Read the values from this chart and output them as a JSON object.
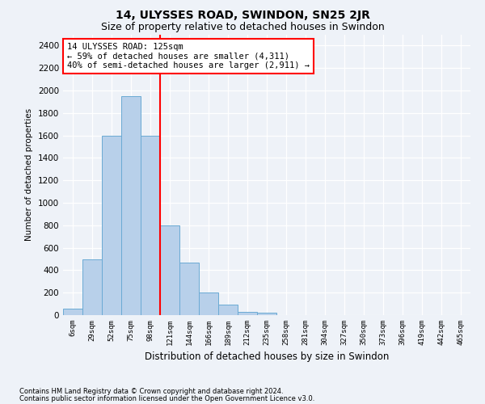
{
  "title": "14, ULYSSES ROAD, SWINDON, SN25 2JR",
  "subtitle": "Size of property relative to detached houses in Swindon",
  "xlabel": "Distribution of detached houses by size in Swindon",
  "ylabel": "Number of detached properties",
  "footer_line1": "Contains HM Land Registry data © Crown copyright and database right 2024.",
  "footer_line2": "Contains public sector information licensed under the Open Government Licence v3.0.",
  "annotation_title": "14 ULYSSES ROAD: 125sqm",
  "annotation_line1": "← 59% of detached houses are smaller (4,311)",
  "annotation_line2": "40% of semi-detached houses are larger (2,911) →",
  "bar_color": "#b8d0ea",
  "bar_edge_color": "#6aaad4",
  "vline_color": "red",
  "vline_x": 4.5,
  "categories": [
    "6sqm",
    "29sqm",
    "52sqm",
    "75sqm",
    "98sqm",
    "121sqm",
    "144sqm",
    "166sqm",
    "189sqm",
    "212sqm",
    "235sqm",
    "258sqm",
    "281sqm",
    "304sqm",
    "327sqm",
    "350sqm",
    "373sqm",
    "396sqm",
    "419sqm",
    "442sqm",
    "465sqm"
  ],
  "values": [
    60,
    500,
    1600,
    1950,
    1600,
    800,
    470,
    200,
    90,
    30,
    20,
    0,
    0,
    0,
    0,
    0,
    0,
    0,
    0,
    0,
    0
  ],
  "ylim": [
    0,
    2500
  ],
  "yticks": [
    0,
    200,
    400,
    600,
    800,
    1000,
    1200,
    1400,
    1600,
    1800,
    2000,
    2200,
    2400
  ],
  "background_color": "#eef2f8",
  "plot_bg_color": "#eef2f8",
  "grid_color": "#ffffff",
  "title_fontsize": 10,
  "subtitle_fontsize": 9,
  "annotation_box_color": "white",
  "annotation_box_edge": "red",
  "annotation_fontsize": 7.5
}
